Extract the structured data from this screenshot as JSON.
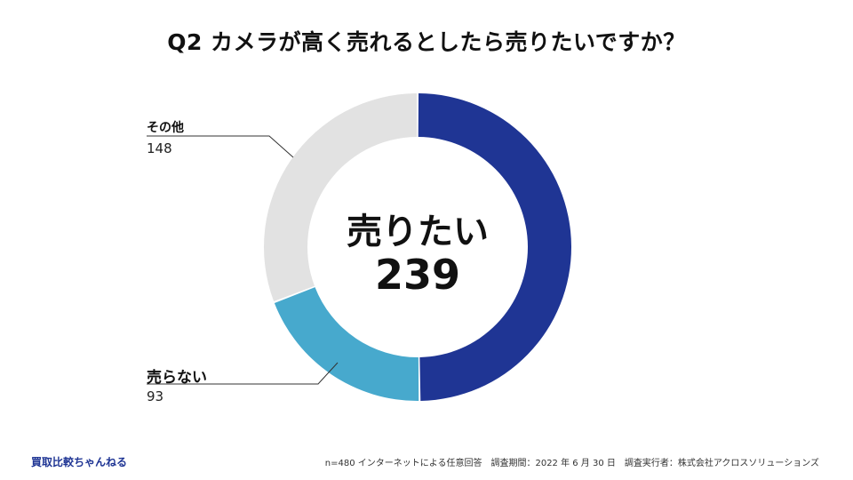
{
  "chart_data": {
    "type": "pie",
    "donut": true,
    "title": "Q2 カメラが高く売れるとしたら売りたいですか？",
    "categories": [
      "売りたい",
      "売らない",
      "その他"
    ],
    "values": [
      239,
      93,
      148
    ],
    "colors": [
      "#1f3594",
      "#47a9cd",
      "#e2e2e2"
    ],
    "center": {
      "label": "売りたい",
      "value": "239"
    },
    "labels": [
      {
        "name": "その他",
        "value": "148"
      },
      {
        "name": "売らない",
        "value": "93"
      }
    ]
  },
  "footer": {
    "brand": "買取比較ちゃんねる",
    "note": "n=480 インターネットによる任意回答　調査期間：2022 年 6 月 30 日　調査実行者：株式会社アクロスソリューションズ"
  }
}
